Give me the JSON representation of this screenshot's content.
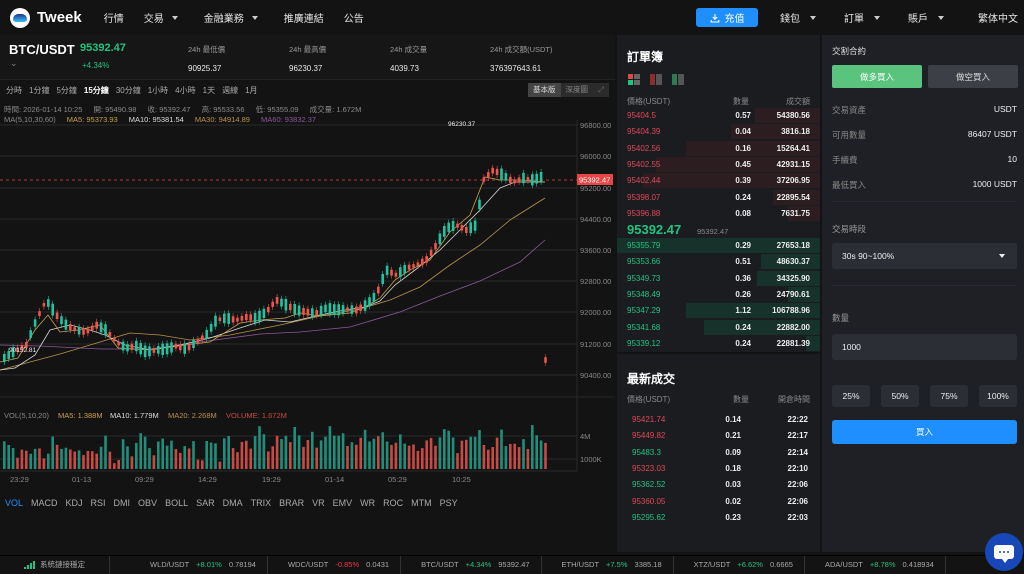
{
  "nav": {
    "brand": "Tweek",
    "items": [
      {
        "label": "行情",
        "has_dropdown": false
      },
      {
        "label": "交易",
        "has_dropdown": true
      },
      {
        "label": "金融業務",
        "has_dropdown": true
      },
      {
        "label": "推廣連結",
        "has_dropdown": false
      },
      {
        "label": "公告",
        "has_dropdown": false
      }
    ],
    "deposit_label": "充值",
    "right_items": [
      {
        "label": "錢包",
        "has_dropdown": true
      },
      {
        "label": "訂單",
        "has_dropdown": true
      },
      {
        "label": "賬戶",
        "has_dropdown": true
      }
    ],
    "language": "繁体中文"
  },
  "ticker": {
    "pair": "BTC/USDT",
    "last_price": "95392.47",
    "change_pct": "+4.34%",
    "stats": [
      {
        "label": "24h 最低價",
        "value": "90925.37"
      },
      {
        "label": "24h 最高價",
        "value": "96230.37"
      },
      {
        "label": "24h 成交量",
        "value": "4039.73"
      },
      {
        "label": "24h 成交額(USDT)",
        "value": "376397643.61"
      }
    ]
  },
  "chart": {
    "intervals": [
      "分時",
      "1分鐘",
      "5分鐘",
      "15分鐘",
      "30分鐘",
      "1小時",
      "4小時",
      "1天",
      "週線",
      "1月"
    ],
    "active_interval": "15分鐘",
    "views": [
      "基本版",
      "深度圖"
    ],
    "active_view": "基本版",
    "ohlc": {
      "time": "時間: 2026-01-14 10:25",
      "open": "開: 95490.98",
      "close": "收: 95392.47",
      "high": "高: 95533.56",
      "low": "低: 95355.09",
      "volume": "成交量: 1.672M"
    },
    "ma": {
      "label": "MA(5,10,30,60)",
      "ma5": "MA5: 95373.93",
      "ma10": "MA10: 95381.54",
      "ma30": "MA30: 94914.89",
      "ma60": "MA60: 93832.37"
    },
    "vol": {
      "label": "VOL(5,10,20)",
      "ma5": "MA5: 1.388M",
      "ma10": "MA10: 1.779M",
      "ma20": "MA20: 2.268M",
      "volume": "VOLUME: 1.672M"
    },
    "price_axis": [
      "96800.00",
      "96000.00",
      "95200.00",
      "94400.00",
      "93600.00",
      "92800.00",
      "92000.00",
      "91200.00",
      "90400.00"
    ],
    "current_price_tag": "95392.47",
    "high_marker": "96230.37",
    "low_marker": "90152.81",
    "vol_axis": [
      "4M",
      "1000K"
    ],
    "time_axis": [
      "23:29",
      "01-13",
      "09:29",
      "14:29",
      "19:29",
      "01-14",
      "05:29",
      "10:25"
    ],
    "indicators": [
      "VOL",
      "MACD",
      "KDJ",
      "RSI",
      "DMI",
      "OBV",
      "BOLL",
      "SAR",
      "DMA",
      "TRIX",
      "BRAR",
      "VR",
      "EMV",
      "WR",
      "ROC",
      "MTM",
      "PSY"
    ],
    "active_indicator": "VOL",
    "colors": {
      "up": "#21c4a0",
      "down": "#f0554d",
      "ma5": "#c9a24a",
      "ma10": "#d8d8d8",
      "ma30": "#b8934a",
      "ma60": "#8a5a9a"
    }
  },
  "orderbook": {
    "title": "訂單簿",
    "headers": [
      "價格(USDT)",
      "數量",
      "成交額"
    ],
    "asks": [
      {
        "price": "95404.5",
        "qty": "0.57",
        "total": "54380.56",
        "depth": 0.32
      },
      {
        "price": "95404.39",
        "qty": "0.04",
        "total": "3816.18",
        "depth": 0.44
      },
      {
        "price": "95402.56",
        "qty": "0.16",
        "total": "15264.41",
        "depth": 0.66
      },
      {
        "price": "95402.55",
        "qty": "0.45",
        "total": "42931.15",
        "depth": 0.81
      },
      {
        "price": "95402.44",
        "qty": "0.39",
        "total": "37206.95",
        "depth": 0.87
      },
      {
        "price": "95398.07",
        "qty": "0.24",
        "total": "22895.54",
        "depth": 0.23
      },
      {
        "price": "95396.88",
        "qty": "0.08",
        "total": "7631.75",
        "depth": 0.16
      }
    ],
    "mid_price": "95392.47",
    "mid_sub": "95392.47",
    "bids": [
      {
        "price": "95355.79",
        "qty": "0.29",
        "total": "27653.18",
        "depth": 1.0
      },
      {
        "price": "95353.66",
        "qty": "0.51",
        "total": "48630.37",
        "depth": 0.29
      },
      {
        "price": "95349.73",
        "qty": "0.36",
        "total": "34325.90",
        "depth": 0.31
      },
      {
        "price": "95348.49",
        "qty": "0.26",
        "total": "24790.61",
        "depth": 0.16
      },
      {
        "price": "95347.29",
        "qty": "1.12",
        "total": "106788.96",
        "depth": 0.66
      },
      {
        "price": "95341.68",
        "qty": "0.24",
        "total": "22882.00",
        "depth": 0.57
      },
      {
        "price": "95339.12",
        "qty": "0.24",
        "total": "22881.39",
        "depth": 0.07
      }
    ]
  },
  "trades": {
    "title": "最新成交",
    "headers": [
      "價格(USDT)",
      "數量",
      "開倉時間"
    ],
    "rows": [
      {
        "price": "95421.74",
        "qty": "0.14",
        "time": "22:22",
        "side": "down"
      },
      {
        "price": "95449.82",
        "qty": "0.21",
        "time": "22:17",
        "side": "down"
      },
      {
        "price": "95483.3",
        "qty": "0.09",
        "time": "22:14",
        "side": "up"
      },
      {
        "price": "95323.03",
        "qty": "0.18",
        "time": "22:10",
        "side": "down"
      },
      {
        "price": "95362.52",
        "qty": "0.03",
        "time": "22:06",
        "side": "up"
      },
      {
        "price": "95360.05",
        "qty": "0.02",
        "time": "22:06",
        "side": "down"
      },
      {
        "price": "95295.62",
        "qty": "0.23",
        "time": "22:03",
        "side": "up"
      }
    ]
  },
  "order_form": {
    "title": "交割合約",
    "long_label": "做多買入",
    "short_label": "做空買入",
    "info": [
      {
        "label": "交易資產",
        "value": "USDT"
      },
      {
        "label": "可用數量",
        "value": "86407 USDT"
      },
      {
        "label": "手續費",
        "value": "10"
      },
      {
        "label": "最低買入",
        "value": "1000 USDT"
      }
    ],
    "period_label": "交易時段",
    "period_value": "30s 90~100%",
    "qty_label": "數量",
    "qty_value": "1000",
    "pct_buttons": [
      "25%",
      "50%",
      "75%",
      "100%"
    ],
    "buy_label": "買入"
  },
  "statusbar": {
    "connection": "系統鏈接穩定",
    "tickers": [
      {
        "pair": "WLD/USDT",
        "change": "+8.01%",
        "price": "0.78194",
        "dir": "up"
      },
      {
        "pair": "WDC/USDT",
        "change": "-0.85%",
        "price": "0.0431",
        "dir": "down"
      },
      {
        "pair": "BTC/USDT",
        "change": "+4.34%",
        "price": "95392.47",
        "dir": "up"
      },
      {
        "pair": "ETH/USDT",
        "change": "+7.5%",
        "price": "3385.18",
        "dir": "up"
      },
      {
        "pair": "XTZ/USDT",
        "change": "+6.62%",
        "price": "0.6665",
        "dir": "up"
      },
      {
        "pair": "ADA/USDT",
        "change": "+8.78%",
        "price": "0.418934",
        "dir": "up"
      }
    ]
  }
}
